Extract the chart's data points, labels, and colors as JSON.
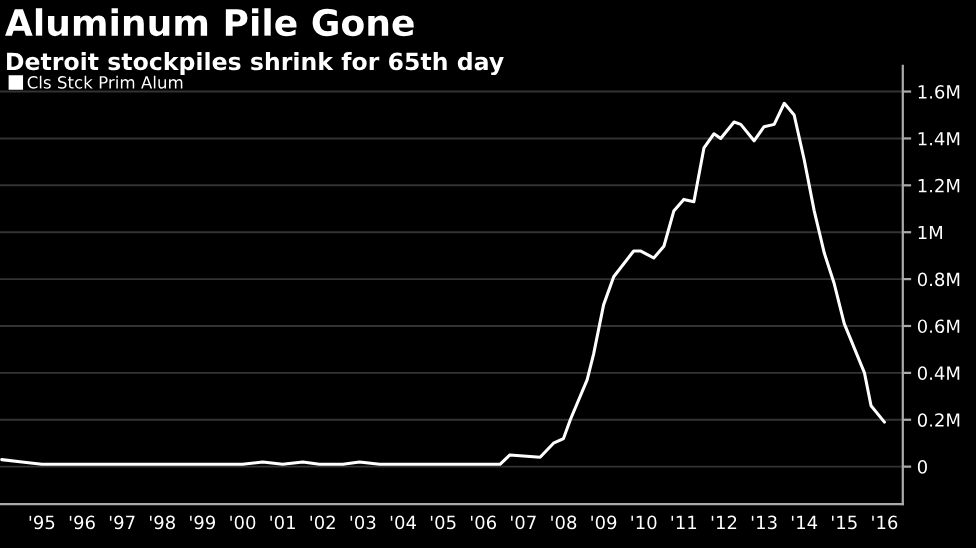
{
  "chart_data": {
    "type": "line",
    "title": "Aluminum Pile Gone",
    "subtitle": "Detroit stockpiles shrink for 65th day",
    "series": [
      {
        "name": "Cls Stck Prim Alum",
        "color": "#ffffff",
        "x": [
          "1994-07",
          "1995-01",
          "1995-07",
          "1996-03",
          "1997-01",
          "2000-07",
          "2001-01",
          "2001-07",
          "2002-01",
          "2002-06",
          "2003-01",
          "2003-06",
          "2003-12",
          "2006-04",
          "2006-12",
          "2007-03",
          "2007-12",
          "2008-04",
          "2008-07",
          "2008-09",
          "2009-02",
          "2009-04",
          "2009-07",
          "2009-10",
          "2010-04",
          "2010-06",
          "2010-10",
          "2011-01",
          "2011-04",
          "2011-07",
          "2011-10",
          "2012-01",
          "2012-04",
          "2012-06",
          "2012-10",
          "2012-12",
          "2013-04",
          "2013-07",
          "2013-10",
          "2014-01",
          "2014-04",
          "2014-07",
          "2014-10",
          "2015-01",
          "2015-04",
          "2015-07",
          "2016-01",
          "2016-03",
          "2016-07"
        ],
        "values": [
          0.03,
          0.02,
          0.01,
          0.01,
          0.01,
          0.01,
          0.02,
          0.01,
          0.02,
          0.01,
          0.01,
          0.02,
          0.01,
          0.01,
          0.01,
          0.05,
          0.04,
          0.1,
          0.12,
          0.2,
          0.37,
          0.48,
          0.69,
          0.81,
          0.92,
          0.92,
          0.89,
          0.94,
          1.09,
          1.14,
          1.13,
          1.36,
          1.42,
          1.4,
          1.47,
          1.46,
          1.39,
          1.45,
          1.46,
          1.55,
          1.5,
          1.31,
          1.09,
          0.91,
          0.78,
          0.61,
          0.4,
          0.26,
          0.19
        ]
      }
    ],
    "xlim": [
      "1994-06-15",
      "2016-12-15"
    ],
    "xticks": [
      {
        "value": "1995-07-01",
        "label": "'95"
      },
      {
        "value": "1996-07-01",
        "label": "'96"
      },
      {
        "value": "1997-07-01",
        "label": "'97"
      },
      {
        "value": "1998-07-01",
        "label": "'98"
      },
      {
        "value": "1999-07-01",
        "label": "'99"
      },
      {
        "value": "2000-07-01",
        "label": "'00"
      },
      {
        "value": "2001-07-01",
        "label": "'01"
      },
      {
        "value": "2002-07-01",
        "label": "'02"
      },
      {
        "value": "2003-07-01",
        "label": "'03"
      },
      {
        "value": "2004-07-01",
        "label": "'04"
      },
      {
        "value": "2005-07-01",
        "label": "'05"
      },
      {
        "value": "2006-07-01",
        "label": "'06"
      },
      {
        "value": "2007-07-01",
        "label": "'07"
      },
      {
        "value": "2008-07-01",
        "label": "'08"
      },
      {
        "value": "2009-07-01",
        "label": "'09"
      },
      {
        "value": "2010-07-01",
        "label": "'10"
      },
      {
        "value": "2011-07-01",
        "label": "'11"
      },
      {
        "value": "2012-07-01",
        "label": "'12"
      },
      {
        "value": "2013-07-01",
        "label": "'13"
      },
      {
        "value": "2014-07-01",
        "label": "'14"
      },
      {
        "value": "2015-07-01",
        "label": "'15"
      },
      {
        "value": "2016-07-01",
        "label": "'16"
      }
    ],
    "ylim": [
      -0.16,
      1.71
    ],
    "yticks": [
      0,
      {
        "value": 0.2,
        "label": "0.2M"
      },
      {
        "value": 0.4,
        "label": "0.4M"
      },
      {
        "value": 0.6,
        "label": "0.6M"
      },
      {
        "value": 0.8,
        "label": "0.8M"
      },
      {
        "value": 1,
        "label": "1M"
      },
      {
        "value": 1.2,
        "label": "1.2M"
      },
      {
        "value": 1.4,
        "label": "1.4M"
      },
      {
        "value": 1.6,
        "label": "1.6M"
      }
    ],
    "grid": "y",
    "legend": "top left",
    "marker": "none",
    "line_style": "solid"
  }
}
